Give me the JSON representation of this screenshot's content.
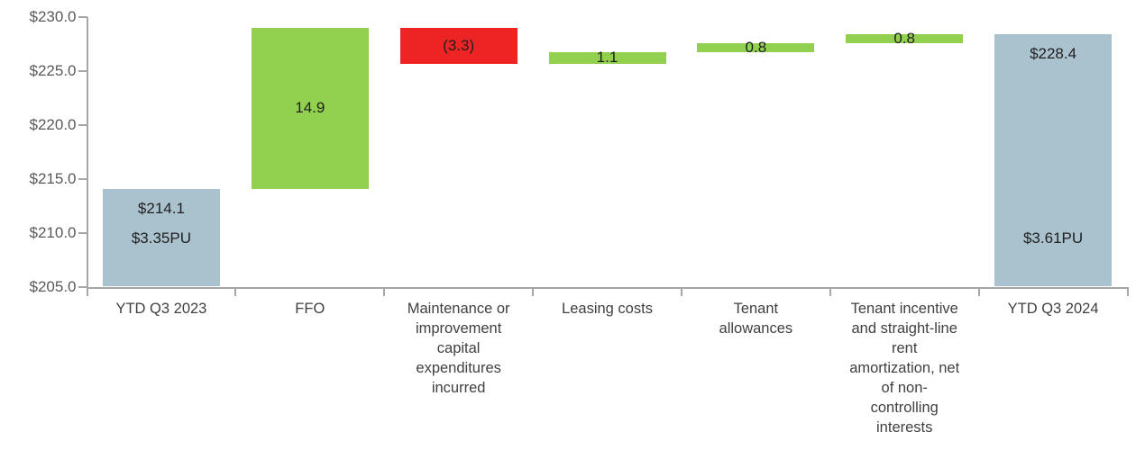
{
  "chart_data": {
    "type": "bar",
    "variant": "waterfall",
    "title": "",
    "xlabel": "",
    "ylabel": "",
    "grid": false,
    "legend": false,
    "y_axis": {
      "min": 205.0,
      "max": 230.0,
      "step": 5.0,
      "ylim": [
        205.0,
        230.0
      ],
      "tick_labels": [
        "$230.0",
        "$225.0",
        "$220.0",
        "$215.0",
        "$210.0",
        "$205.0"
      ]
    },
    "bars": [
      {
        "category": "YTD Q3 2023",
        "kind": "total",
        "start": 205.0,
        "end": 214.1,
        "value": 214.1,
        "labels": [
          "$214.1",
          "$3.35PU"
        ]
      },
      {
        "category": "FFO",
        "kind": "increase",
        "start": 214.1,
        "end": 229.0,
        "value": 14.9,
        "labels": [
          "14.9"
        ]
      },
      {
        "category": "Maintenance or\nimprovement\ncapital\nexpenditures\nincurred",
        "kind": "decrease",
        "start": 229.0,
        "end": 225.7,
        "value": -3.3,
        "labels": [
          "(3.3)"
        ]
      },
      {
        "category": "Leasing costs",
        "kind": "increase",
        "start": 225.7,
        "end": 226.8,
        "value": 1.1,
        "labels": [
          "1.1"
        ]
      },
      {
        "category": "Tenant\nallowances",
        "kind": "increase",
        "start": 226.8,
        "end": 227.6,
        "value": 0.8,
        "labels": [
          "0.8"
        ]
      },
      {
        "category": "Tenant incentive\nand straight-line\nrent\namortization, net\nof non-\ncontrolling\ninterests",
        "kind": "increase",
        "start": 227.6,
        "end": 228.4,
        "value": 0.8,
        "labels": [
          "0.8"
        ]
      },
      {
        "category": "YTD Q3 2024",
        "kind": "total",
        "start": 205.0,
        "end": 228.4,
        "value": 228.4,
        "labels": [
          "$228.4",
          "$3.61PU"
        ]
      }
    ],
    "colors": {
      "total": "#aac1ce",
      "increase": "#92d050",
      "decrease": "#ee2424",
      "axis": "#a6a6a6",
      "y_label_text": "#595959",
      "category_text": "#404040",
      "bar_label_text": "#1f1f1f"
    }
  }
}
